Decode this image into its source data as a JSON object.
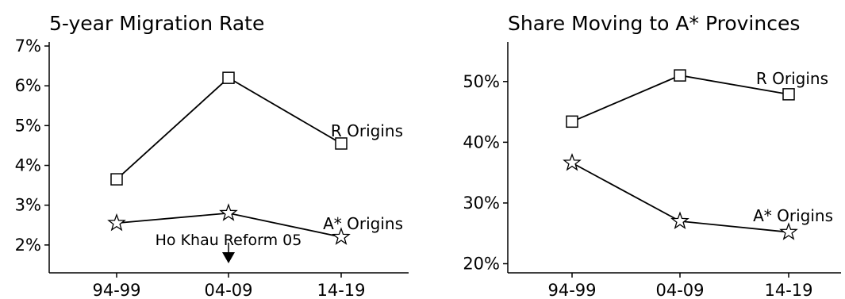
{
  "chart_data": [
    {
      "type": "line",
      "title": "5-year Migration Rate",
      "xlabel": "",
      "ylabel": "",
      "categories": [
        "94-99",
        "04-09",
        "14-19"
      ],
      "ylim": [
        1.3,
        7.1
      ],
      "yticks": [
        "2%",
        "3%",
        "4%",
        "5%",
        "6%",
        "7%"
      ],
      "ytick_values": [
        2,
        3,
        4,
        5,
        6,
        7
      ],
      "series": [
        {
          "name": "R Origins",
          "marker": "square",
          "values": [
            3.65,
            6.2,
            4.55
          ]
        },
        {
          "name": "A* Origins",
          "marker": "star",
          "values": [
            2.55,
            2.8,
            2.2
          ]
        }
      ],
      "annotation": {
        "text": "Ho Khau Reform 05",
        "category": "04-09"
      },
      "grid": false
    },
    {
      "type": "line",
      "title": "Share Moving to A* Provinces",
      "xlabel": "",
      "ylabel": "",
      "categories": [
        "94-99",
        "04-09",
        "14-19"
      ],
      "ylim": [
        18.5,
        56.5
      ],
      "yticks": [
        "20%",
        "30%",
        "40%",
        "50%"
      ],
      "ytick_values": [
        20,
        30,
        40,
        50
      ],
      "series": [
        {
          "name": "R Origins",
          "marker": "square",
          "values": [
            43.4,
            51.0,
            47.9
          ]
        },
        {
          "name": "A* Origins",
          "marker": "star",
          "values": [
            36.6,
            27.0,
            25.2
          ]
        }
      ],
      "grid": false
    }
  ]
}
